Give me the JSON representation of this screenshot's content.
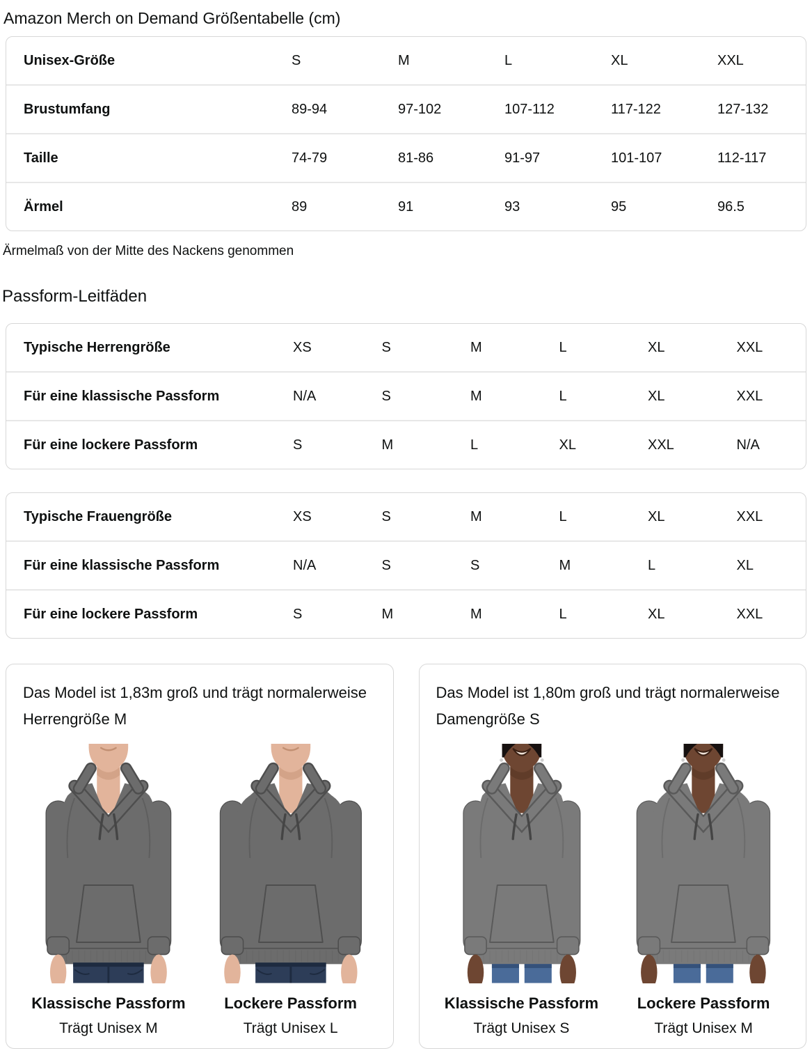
{
  "page": {
    "title": "Amazon Merch on Demand Größentabelle (cm)",
    "footnote": "Ärmelmaß von der Mitte des Nackens genommen",
    "section_title": "Passform-Leitfäden"
  },
  "colors": {
    "text": "#0f1111",
    "table_border": "#d7d7d7",
    "row_separator": "#e7e7e7",
    "card_border": "#d7d7d7"
  },
  "size_table": {
    "rows": [
      {
        "label": "Unisex-Größe",
        "values": [
          "S",
          "M",
          "L",
          "XL",
          "XXL"
        ]
      },
      {
        "label": "Brustumfang",
        "values": [
          "89-94",
          "97-102",
          "107-112",
          "117-122",
          "127-132"
        ]
      },
      {
        "label": "Taille",
        "values": [
          "74-79",
          "81-86",
          "91-97",
          "101-107",
          "112-117"
        ]
      },
      {
        "label": "Ärmel",
        "values": [
          "89",
          "91",
          "93",
          "95",
          "96.5"
        ]
      }
    ]
  },
  "fit_tables": [
    {
      "rows": [
        {
          "label": "Typische Herrengröße",
          "values": [
            "XS",
            "S",
            "M",
            "L",
            "XL",
            "XXL"
          ]
        },
        {
          "label": "Für eine klassische Passform",
          "values": [
            "N/A",
            "S",
            "M",
            "L",
            "XL",
            "XXL"
          ]
        },
        {
          "label": "Für eine lockere Passform",
          "values": [
            "S",
            "M",
            "L",
            "XL",
            "XXL",
            "N/A"
          ]
        }
      ]
    },
    {
      "rows": [
        {
          "label": "Typische Frauengröße",
          "values": [
            "XS",
            "S",
            "M",
            "L",
            "XL",
            "XXL"
          ]
        },
        {
          "label": "Für eine klassische Passform",
          "values": [
            "N/A",
            "S",
            "S",
            "M",
            "L",
            "XL"
          ]
        },
        {
          "label": "Für eine lockere Passform",
          "values": [
            "S",
            "M",
            "M",
            "L",
            "XL",
            "XXL"
          ]
        }
      ]
    }
  ],
  "model_cards": [
    {
      "description": "Das Model ist 1,83m groß und trägt normalerweise Herrengröße M",
      "figures": [
        {
          "fit_label": "Klassische Passform",
          "size_label": "Trägt Unisex M",
          "model": "male",
          "fit": "classic"
        },
        {
          "fit_label": "Lockere Passform",
          "size_label": "Trägt Unisex L",
          "model": "male",
          "fit": "loose"
        }
      ]
    },
    {
      "description": "Das Model ist 1,80m groß und trägt normalerweise Damengröße S",
      "figures": [
        {
          "fit_label": "Klassische Passform",
          "size_label": "Trägt Unisex S",
          "model": "female",
          "fit": "classic"
        },
        {
          "fit_label": "Lockere Passform",
          "size_label": "Trägt Unisex M",
          "model": "female",
          "fit": "loose"
        }
      ]
    }
  ],
  "figure_styles": {
    "male": {
      "skin": "#e2b49b",
      "skin_shadow": "#c18f72",
      "hoodie": "#6c6c6c",
      "hoodie_line": "#4e4e4e",
      "jeans": "#2d3d58",
      "jeans_dark": "#1e2b40"
    },
    "female": {
      "skin": "#6e4632",
      "skin_shadow": "#50311f",
      "hoodie": "#7a7a7a",
      "hoodie_line": "#5a5a5a",
      "jeans": "#4a6b99",
      "jeans_dark": "#35517a",
      "hair": "#171110",
      "lip": "#3a2014",
      "teeth": "#efe3d8"
    }
  }
}
